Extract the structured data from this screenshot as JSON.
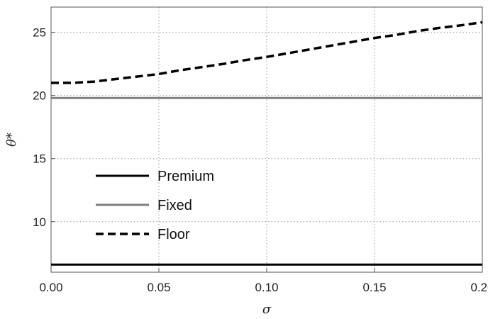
{
  "chart_data": {
    "type": "line",
    "xlabel": "σ",
    "ylabel": "θ*",
    "xlim": [
      0,
      0.2
    ],
    "ylim": [
      6,
      27
    ],
    "grid": true,
    "legend_position": "lower-left",
    "x_ticks": [
      0.0,
      0.05,
      0.1,
      0.15,
      0.2
    ],
    "x_tick_labels": [
      "0.00",
      "0.05",
      "0.10",
      "0.15",
      "0.20"
    ],
    "y_ticks": [
      10,
      15,
      20,
      25
    ],
    "y_tick_labels": [
      "10",
      "15",
      "20",
      "25"
    ],
    "series": [
      {
        "name": "Premium",
        "color": "#000000",
        "style": "solid",
        "x": [
          0.0,
          0.2
        ],
        "y": [
          6.6,
          6.6
        ]
      },
      {
        "name": "Fixed",
        "color": "#808080",
        "style": "solid",
        "x": [
          0.0,
          0.2
        ],
        "y": [
          19.8,
          19.8
        ]
      },
      {
        "name": "Floor",
        "color": "#000000",
        "style": "dashed",
        "x": [
          0.0,
          0.01,
          0.02,
          0.03,
          0.04,
          0.05,
          0.06,
          0.07,
          0.08,
          0.09,
          0.1,
          0.11,
          0.12,
          0.13,
          0.14,
          0.15,
          0.16,
          0.17,
          0.18,
          0.19,
          0.2
        ],
        "y": [
          21.0,
          21.0,
          21.1,
          21.3,
          21.5,
          21.7,
          22.0,
          22.25,
          22.5,
          22.8,
          23.05,
          23.35,
          23.65,
          23.95,
          24.25,
          24.55,
          24.8,
          25.1,
          25.35,
          25.55,
          25.8
        ]
      }
    ]
  }
}
